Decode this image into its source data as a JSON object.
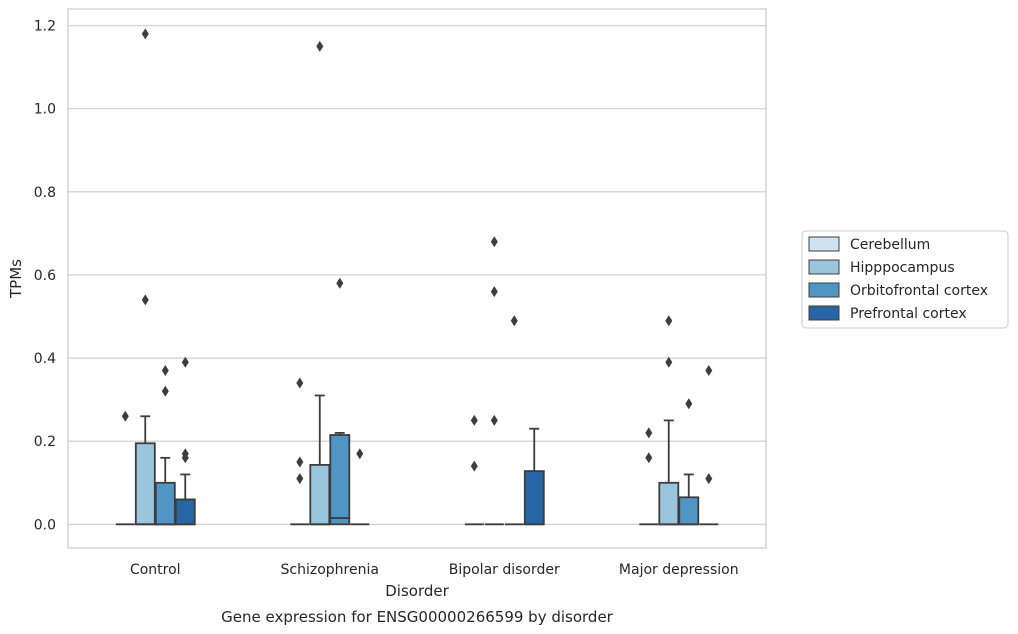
{
  "caption": "Gene expression for ENSG00000266599 by disorder",
  "chart_data": {
    "type": "boxplot",
    "xlabel": "Disorder",
    "ylabel": "TPMs",
    "categories": [
      "Control",
      "Schizophrenia",
      "Bipolar disorder",
      "Major depression"
    ],
    "ylim": [
      -0.057,
      1.24
    ],
    "yticks": [
      0.0,
      0.2,
      0.4,
      0.6,
      0.8,
      1.0,
      1.2
    ],
    "ytick_labels": [
      "0.0",
      "0.2",
      "0.4",
      "0.6",
      "0.8",
      "1.0",
      "1.2"
    ],
    "grid": "horizontal",
    "legend_position": "right",
    "series": [
      {
        "name": "Cerebellum",
        "color": "#d0e1f1",
        "boxes": [
          {
            "q1": 0,
            "median": 0,
            "q3": 0,
            "whisker_low": 0,
            "whisker_high": 0,
            "outliers": [
              0.26
            ]
          },
          {
            "q1": 0,
            "median": 0,
            "q3": 0,
            "whisker_low": 0,
            "whisker_high": 0,
            "outliers": [
              0.34,
              0.15,
              0.11
            ]
          },
          {
            "q1": 0,
            "median": 0,
            "q3": 0,
            "whisker_low": 0,
            "whisker_high": 0,
            "outliers": [
              0.25,
              0.14
            ]
          },
          {
            "q1": 0,
            "median": 0,
            "q3": 0,
            "whisker_low": 0,
            "whisker_high": 0,
            "outliers": [
              0.22,
              0.16
            ]
          }
        ]
      },
      {
        "name": "Hipppocampus",
        "color": "#9ac6dd",
        "boxes": [
          {
            "q1": 0,
            "median": 0,
            "q3": 0.195,
            "whisker_low": 0,
            "whisker_high": 0.26,
            "outliers": [
              1.18,
              0.54
            ]
          },
          {
            "q1": 0,
            "median": 0,
            "q3": 0.143,
            "whisker_low": 0,
            "whisker_high": 0.31,
            "outliers": [
              1.15
            ]
          },
          {
            "q1": 0,
            "median": 0,
            "q3": 0,
            "whisker_low": 0,
            "whisker_high": 0,
            "outliers": [
              0.68,
              0.56,
              0.25
            ]
          },
          {
            "q1": 0,
            "median": 0,
            "q3": 0.1,
            "whisker_low": 0,
            "whisker_high": 0.25,
            "outliers": [
              0.49,
              0.39
            ]
          }
        ]
      },
      {
        "name": "Orbitofrontal cortex",
        "color": "#5096c5",
        "boxes": [
          {
            "q1": 0,
            "median": 0,
            "q3": 0.1,
            "whisker_low": 0,
            "whisker_high": 0.16,
            "outliers": [
              0.37,
              0.32
            ]
          },
          {
            "q1": 0,
            "median": 0.015,
            "q3": 0.215,
            "whisker_low": 0,
            "whisker_high": 0.22,
            "outliers": [
              0.58
            ]
          },
          {
            "q1": 0,
            "median": 0,
            "q3": 0,
            "whisker_low": 0,
            "whisker_high": 0,
            "outliers": [
              0.49
            ]
          },
          {
            "q1": 0,
            "median": 0,
            "q3": 0.065,
            "whisker_low": 0,
            "whisker_high": 0.12,
            "outliers": [
              0.29
            ]
          }
        ]
      },
      {
        "name": "Prefrontal cortex",
        "color": "#2765a5",
        "boxes": [
          {
            "q1": 0,
            "median": 0,
            "q3": 0.06,
            "whisker_low": 0,
            "whisker_high": 0.12,
            "outliers": [
              0.39,
              0.17,
              0.16
            ]
          },
          {
            "q1": 0,
            "median": 0,
            "q3": 0,
            "whisker_low": 0,
            "whisker_high": 0,
            "outliers": [
              0.17
            ]
          },
          {
            "q1": 0,
            "median": 0,
            "q3": 0.128,
            "whisker_low": 0,
            "whisker_high": 0.23,
            "outliers": []
          },
          {
            "q1": 0,
            "median": 0,
            "q3": 0,
            "whisker_low": 0,
            "whisker_high": 0,
            "outliers": [
              0.37,
              0.11
            ]
          }
        ]
      }
    ]
  }
}
